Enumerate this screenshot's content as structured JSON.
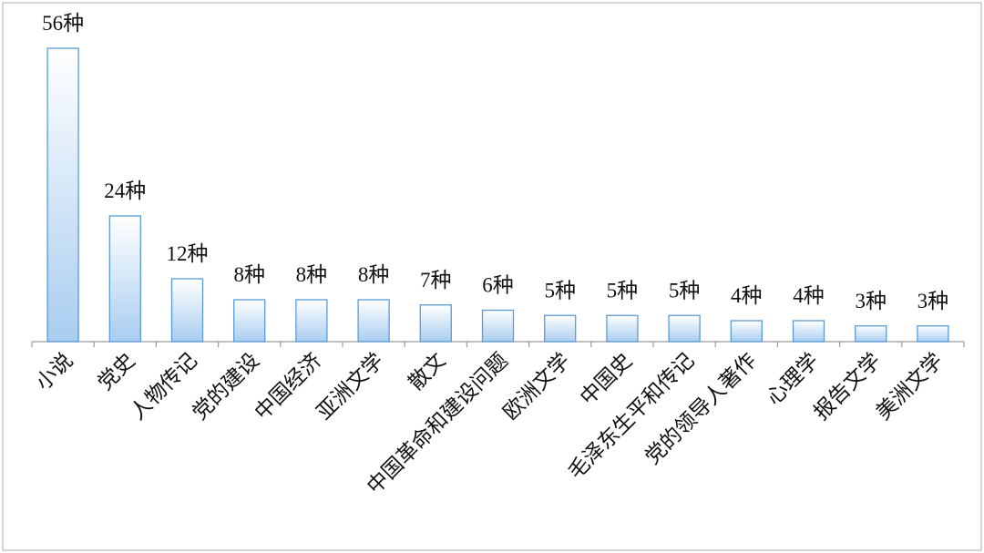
{
  "chart_data": {
    "type": "bar",
    "categories": [
      "小说",
      "党史",
      "人物传记",
      "党的建设",
      "中国经济",
      "亚洲文学",
      "散文",
      "中国革命和建设问题",
      "欧洲文学",
      "中国史",
      "毛泽东生平和传记",
      "党的领导人著作",
      "心理学",
      "报告文学",
      "美洲文学"
    ],
    "values": [
      56,
      24,
      12,
      8,
      8,
      8,
      7,
      6,
      5,
      5,
      5,
      4,
      4,
      3,
      3
    ],
    "value_labels": [
      "56种",
      "24种",
      "12种",
      "8种",
      "8种",
      "8种",
      "7种",
      "6种",
      "5种",
      "5种",
      "5种",
      "4种",
      "4种",
      "3种",
      "3种"
    ],
    "color": "#5b9bd5"
  }
}
